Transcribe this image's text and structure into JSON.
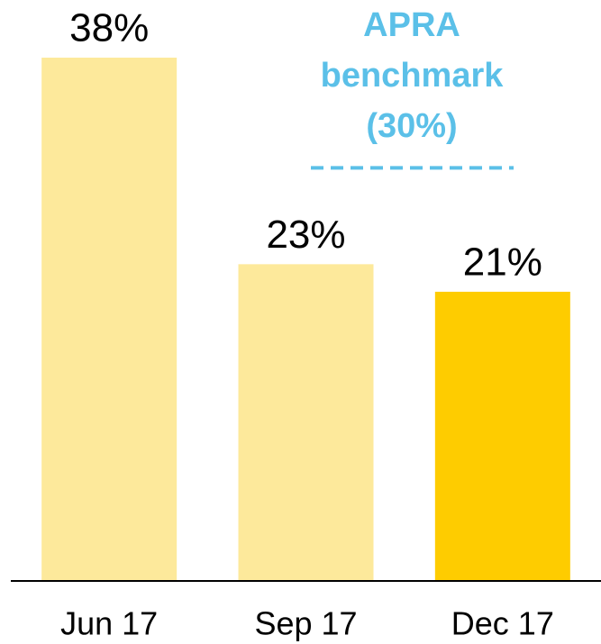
{
  "chart_data": {
    "type": "bar",
    "categories": [
      "Jun 17",
      "Sep 17",
      "Dec 17"
    ],
    "values": [
      38,
      23,
      21
    ],
    "value_labels": [
      "38%",
      "23%",
      "21%"
    ],
    "colors": [
      "#fde99b",
      "#fde99b",
      "#fecc00"
    ],
    "ylim": [
      0,
      38
    ],
    "benchmark": {
      "value": 30,
      "label": [
        "APRA",
        "benchmark",
        "(30%)"
      ],
      "color": "#5bc0e8"
    }
  }
}
